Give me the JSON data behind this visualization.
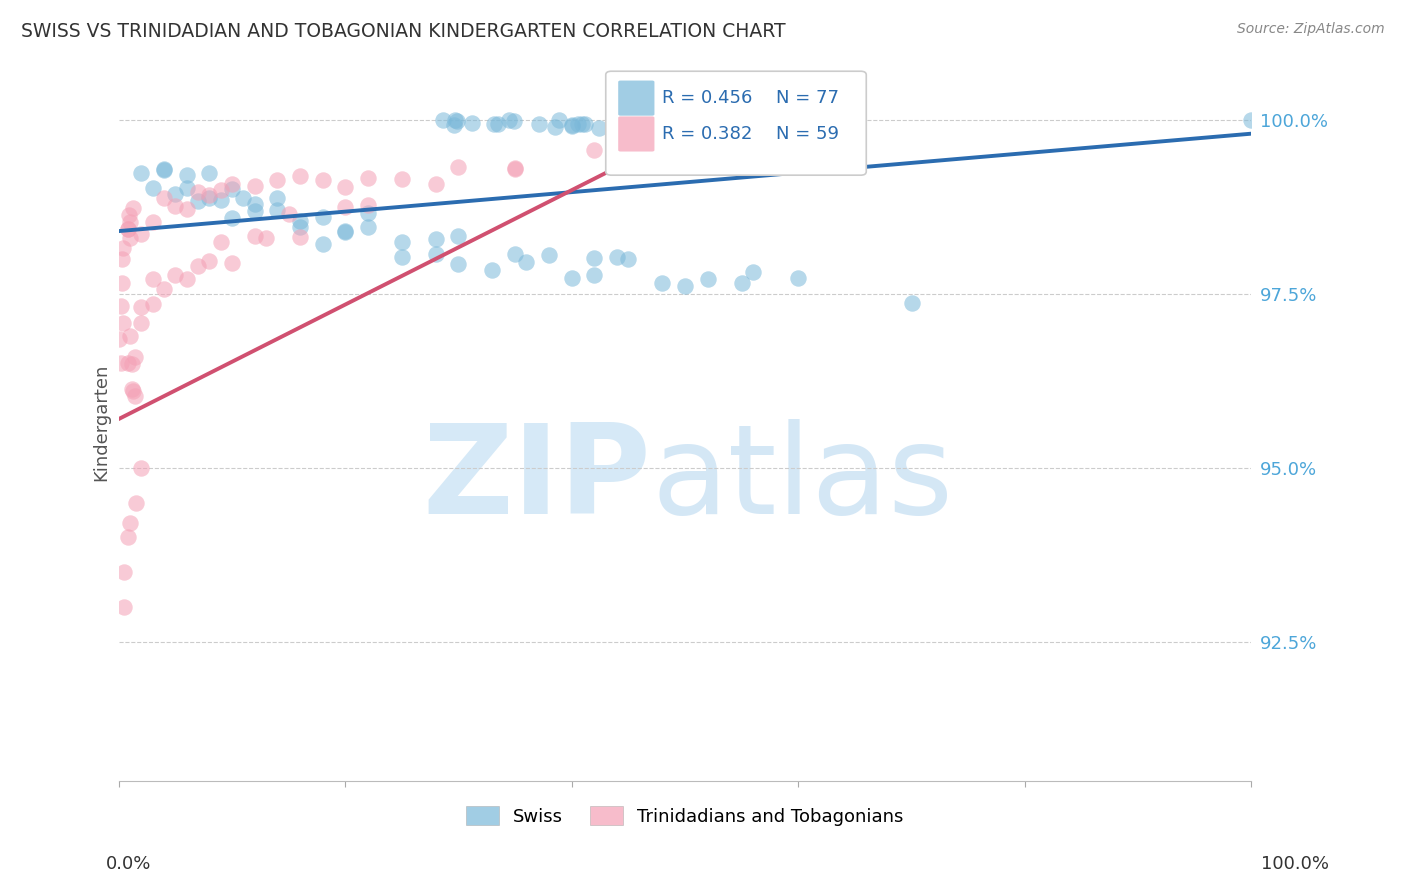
{
  "title": "SWISS VS TRINIDADIAN AND TOBAGONIAN KINDERGARTEN CORRELATION CHART",
  "source": "Source: ZipAtlas.com",
  "ylabel": "Kindergarten",
  "ytick_labels": [
    "100.0%",
    "97.5%",
    "95.0%",
    "92.5%"
  ],
  "ytick_values": [
    1.0,
    0.975,
    0.95,
    0.925
  ],
  "xlim": [
    0.0,
    1.0
  ],
  "ylim": [
    0.905,
    1.008
  ],
  "swiss_color": "#7ab8d9",
  "tnt_color": "#f4a0b5",
  "swiss_line_color": "#2b6cb0",
  "tnt_line_color": "#d05070",
  "legend_swiss_label": "R = 0.456",
  "legend_swiss_n": "N = 77",
  "legend_tnt_label": "R = 0.382",
  "legend_tnt_n": "N = 59",
  "legend_swiss_short": "Swiss",
  "legend_tnt_short": "Trinidadians and Tobagonians",
  "watermark_zip": "ZIP",
  "watermark_atlas": "atlas",
  "swiss_R": 0.456,
  "swiss_N": 77,
  "tnt_R": 0.382,
  "tnt_N": 59
}
